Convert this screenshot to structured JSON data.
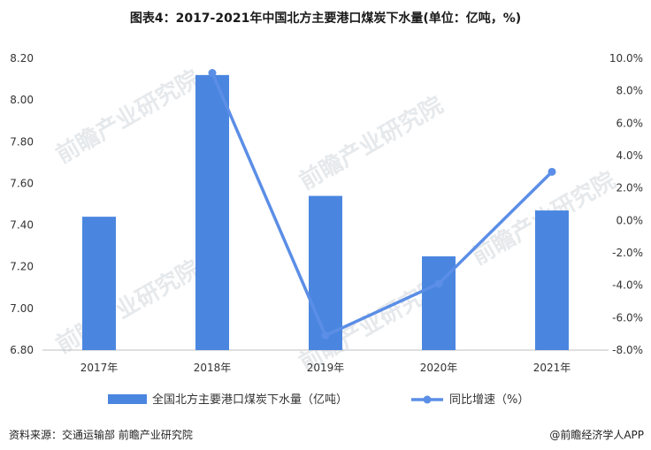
{
  "title": "图表4：2017-2021年中国北方主要港口煤炭下水量(单位：亿吨，%)",
  "footer": {
    "source": "资料来源：交通运输部 前瞻产业研究院",
    "brand": "@前瞻经济学人APP"
  },
  "watermark": "前瞻产业研究院",
  "chart_data": {
    "type": "bar+line",
    "categories": [
      "2017年",
      "2018年",
      "2019年",
      "2020年",
      "2021年"
    ],
    "series": [
      {
        "name": "全国北方主要港口煤炭下水量（亿吨）",
        "type": "bar",
        "axis": "left",
        "color": "#4a86e0",
        "values": [
          7.44,
          8.12,
          7.54,
          7.25,
          7.47
        ]
      },
      {
        "name": "同比增速（%）",
        "type": "line",
        "axis": "right",
        "color": "#5b8ee6",
        "values": [
          null,
          9.1,
          -7.1,
          -3.9,
          3.0
        ]
      }
    ],
    "left_axis": {
      "ylim": [
        6.8,
        8.2
      ],
      "ticks": [
        "6.80",
        "7.00",
        "7.20",
        "7.40",
        "7.60",
        "7.80",
        "8.00",
        "8.20"
      ]
    },
    "right_axis": {
      "ylim": [
        -8,
        10
      ],
      "ticks": [
        "-8.0%",
        "-6.0%",
        "-4.0%",
        "-2.0%",
        "0.0%",
        "2.0%",
        "4.0%",
        "6.0%",
        "8.0%",
        "10.0%"
      ]
    },
    "legend_position": "bottom",
    "grid": false
  }
}
